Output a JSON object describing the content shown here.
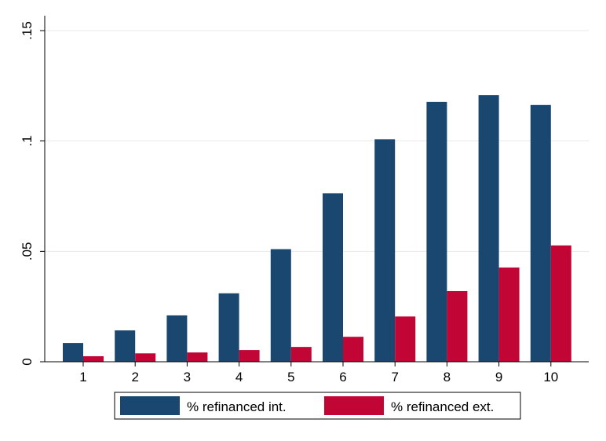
{
  "chart_data": {
    "type": "bar",
    "categories": [
      "1",
      "2",
      "3",
      "4",
      "5",
      "6",
      "7",
      "8",
      "9",
      "10"
    ],
    "series": [
      {
        "name": "% refinanced int.",
        "color": "#1a476f",
        "values": [
          0.0085,
          0.0142,
          0.021,
          0.031,
          0.051,
          0.0763,
          0.1008,
          0.1177,
          0.1208,
          0.1163
        ]
      },
      {
        "name": "% refinanced ext.",
        "color": "#c10534",
        "values": [
          0.0025,
          0.0038,
          0.0042,
          0.0053,
          0.0067,
          0.0113,
          0.0205,
          0.032,
          0.0427,
          0.0527
        ]
      }
    ],
    "ylim": [
      0,
      0.15
    ],
    "yticks": [
      {
        "value": 0,
        "label": "0"
      },
      {
        "value": 0.05,
        "label": ".05"
      },
      {
        "value": 0.1,
        "label": ".1"
      },
      {
        "value": 0.15,
        "label": ".15"
      }
    ],
    "grid": true,
    "legend_position": "bottom",
    "title": "",
    "xlabel": "",
    "ylabel": ""
  }
}
